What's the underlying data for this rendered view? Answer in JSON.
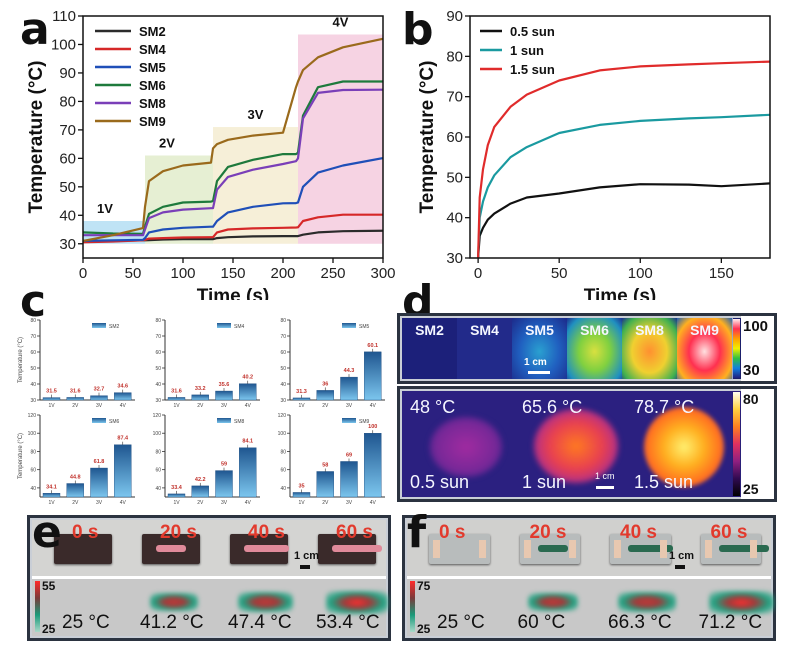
{
  "panels": {
    "a": "a",
    "b": "b",
    "c": "c",
    "d": "d",
    "e": "e",
    "f": "f"
  },
  "chart_data": [
    {
      "id": "a",
      "type": "line",
      "title": "",
      "xlabel": "Time (s)",
      "ylabel": "Temperature (°C)",
      "xlim": [
        0,
        300
      ],
      "ylim": [
        25,
        110
      ],
      "xticks": [
        0,
        50,
        100,
        150,
        200,
        250,
        300
      ],
      "yticks": [
        30,
        40,
        50,
        60,
        70,
        80,
        90,
        100,
        110
      ],
      "legend_position": "top-left",
      "regions": [
        {
          "label": "1V",
          "x": [
            0,
            62
          ],
          "y": [
            30,
            38
          ],
          "color": "#bfe3f5"
        },
        {
          "label": "2V",
          "x": [
            62,
            130
          ],
          "y": [
            30,
            61
          ],
          "color": "#e6efd3"
        },
        {
          "label": "3V",
          "x": [
            130,
            215
          ],
          "y": [
            30,
            71
          ],
          "color": "#f6efd8"
        },
        {
          "label": "4V",
          "x": [
            215,
            300
          ],
          "y": [
            30,
            103.5
          ],
          "color": "#f6d3e3"
        }
      ],
      "x": [
        0,
        30,
        60,
        62,
        66,
        80,
        100,
        128,
        130,
        134,
        145,
        170,
        200,
        213,
        215,
        220,
        235,
        260,
        300
      ],
      "series": [
        {
          "name": "SM2",
          "color": "#2b2b2b",
          "values": [
            31,
            31,
            31.2,
            31.2,
            31.3,
            31.5,
            31.6,
            31.6,
            31.6,
            32,
            32.3,
            32.6,
            32.7,
            32.7,
            32.7,
            33.2,
            34,
            34.4,
            34.6
          ]
        },
        {
          "name": "SM4",
          "color": "#d62828",
          "values": [
            30.5,
            30.8,
            31.2,
            31.4,
            31.8,
            32,
            32.2,
            32.3,
            32.3,
            34,
            35,
            35.4,
            35.6,
            35.7,
            35.8,
            38,
            39.3,
            40.2,
            40.2
          ]
        },
        {
          "name": "SM5",
          "color": "#1f4fb8",
          "values": [
            31,
            31.2,
            31.4,
            32,
            34,
            35,
            35.6,
            36,
            36,
            38,
            41,
            43,
            44.2,
            44.3,
            44.5,
            50,
            55,
            57.5,
            60.1
          ]
        },
        {
          "name": "SM6",
          "color": "#1e7a3c",
          "values": [
            34,
            33.6,
            33.5,
            36,
            40.5,
            43,
            44.5,
            44.8,
            45,
            52,
            57,
            59.5,
            61.5,
            61.5,
            62,
            75,
            85,
            87,
            87
          ]
        },
        {
          "name": "SM8",
          "color": "#7a3fb8",
          "values": [
            33,
            33,
            33,
            35,
            39,
            41,
            42,
            42.5,
            42.5,
            49,
            53.5,
            56,
            58,
            59,
            60,
            74,
            83,
            84,
            84.1
          ]
        },
        {
          "name": "SM9",
          "color": "#9a6a1c",
          "values": [
            31,
            33,
            35.5,
            43,
            52,
            55.5,
            57.5,
            58.5,
            63.5,
            65,
            66.5,
            68,
            69,
            85,
            87,
            91,
            95.5,
            99,
            102
          ]
        }
      ]
    },
    {
      "id": "b",
      "type": "line",
      "title": "",
      "xlabel": "Time (s)",
      "ylabel": "Temperature (°C)",
      "xlim": [
        -5,
        180
      ],
      "ylim": [
        30,
        90
      ],
      "xticks": [
        0,
        50,
        100,
        150
      ],
      "yticks": [
        30,
        40,
        50,
        60,
        70,
        80,
        90
      ],
      "legend_position": "top-left",
      "x": [
        0,
        1,
        3,
        6,
        10,
        20,
        30,
        50,
        75,
        100,
        130,
        150,
        180
      ],
      "series": [
        {
          "name": "0.5 sun",
          "color": "#111111",
          "values": [
            30,
            35.5,
            37.5,
            39.5,
            41,
            43.5,
            45,
            46,
            47.5,
            48.3,
            48.2,
            47.8,
            48.5
          ]
        },
        {
          "name": "1 sun",
          "color": "#1a9aa0",
          "values": [
            30,
            40,
            44,
            47.5,
            50.5,
            55,
            57.5,
            61,
            63,
            64,
            64.6,
            64.9,
            65.5
          ]
        },
        {
          "name": "1.5 sun",
          "color": "#e02b2b",
          "values": [
            30,
            45,
            52,
            58,
            62.5,
            67.5,
            70.5,
            74,
            76.5,
            77.5,
            78,
            78.3,
            78.7
          ]
        }
      ]
    },
    {
      "id": "c",
      "type": "bar",
      "categories": [
        "1V",
        "2V",
        "3V",
        "4V"
      ],
      "ylabel": "Temperature (°C)",
      "subplots": [
        {
          "name": "SM2",
          "values": [
            31.5,
            31.6,
            32.7,
            34.6
          ],
          "labels": [
            "31.5",
            "31.6",
            "32.7",
            "34.6"
          ],
          "ylim": [
            30,
            80
          ],
          "yticks": [
            30,
            40,
            50,
            60,
            70,
            80
          ]
        },
        {
          "name": "SM4",
          "values": [
            31.6,
            33.2,
            35.6,
            40.2
          ],
          "labels": [
            "31.6",
            "33.2",
            "35.6",
            "40.2"
          ],
          "ylim": [
            30,
            80
          ],
          "yticks": [
            30,
            40,
            50,
            60,
            70,
            80
          ]
        },
        {
          "name": "SM5",
          "values": [
            31.3,
            36,
            44.3,
            60.1
          ],
          "labels": [
            "31.3",
            "36",
            "44.3",
            "60.1"
          ],
          "ylim": [
            30,
            80
          ],
          "yticks": [
            30,
            40,
            50,
            60,
            70,
            80
          ]
        },
        {
          "name": "SM6",
          "values": [
            34.1,
            44.8,
            61.8,
            87.4
          ],
          "labels": [
            "34.1",
            "44.8",
            "61.8",
            "87.4"
          ],
          "ylim": [
            30,
            120
          ],
          "yticks": [
            40,
            60,
            80,
            100,
            120
          ]
        },
        {
          "name": "SM8",
          "values": [
            33.4,
            42.2,
            59,
            84.1
          ],
          "labels": [
            "33.4",
            "42.2",
            "59",
            "84.1"
          ],
          "ylim": [
            30,
            120
          ],
          "yticks": [
            40,
            60,
            80,
            100,
            120
          ]
        },
        {
          "name": "SM9",
          "values": [
            35,
            58,
            69,
            100
          ],
          "labels": [
            "35",
            "58",
            "69",
            "100"
          ],
          "ylim": [
            30,
            120
          ],
          "yticks": [
            40,
            60,
            80,
            100,
            120
          ]
        }
      ]
    }
  ],
  "panel_d": {
    "top": {
      "samples": [
        "SM2",
        "SM4",
        "SM5",
        "SM6",
        "SM8",
        "SM9"
      ],
      "scale_bar": "1 cm",
      "colorbar": {
        "max": "100",
        "min": "30"
      }
    },
    "bottom": {
      "cells": [
        {
          "temp": "48 °C",
          "sun": "0.5 sun"
        },
        {
          "temp": "65.6 °C",
          "sun": "1 sun"
        },
        {
          "temp": "78.7 °C",
          "sun": "1.5 sun"
        }
      ],
      "scale_bar": "1 cm",
      "colorbar": {
        "max": "80",
        "min": "25"
      }
    }
  },
  "panel_e": {
    "times": [
      "0 s",
      "20 s",
      "40 s",
      "60 s"
    ],
    "temps": [
      "25 °C",
      "41.2 °C",
      "47.4 °C",
      "53.4 °C"
    ],
    "scale_bar": "1 cm",
    "colorbar": {
      "max": "55",
      "min": "25"
    }
  },
  "panel_f": {
    "times": [
      "0 s",
      "20 s",
      "40 s",
      "60 s"
    ],
    "temps": [
      "25 °C",
      "60 °C",
      "66.3 °C",
      "71.2 °C"
    ],
    "scale_bar": "1 cm",
    "colorbar": {
      "max": "75",
      "min": "25"
    }
  }
}
